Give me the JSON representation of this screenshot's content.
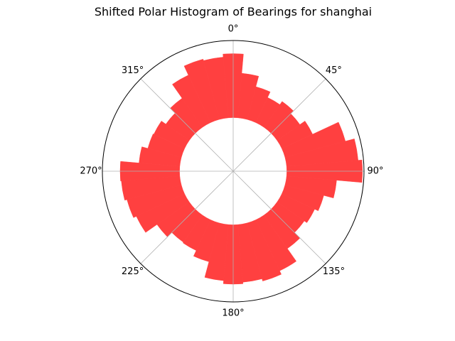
{
  "chart_data": {
    "type": "bar",
    "projection": "polar",
    "title": "Shifted Polar Histogram of Bearings for shanghai",
    "theta_zero": "N",
    "theta_direction": "clockwise",
    "bar_color": "#ff4040",
    "grid": true,
    "angle_ticks": [
      {
        "angle": 0,
        "label": "0°"
      },
      {
        "angle": 45,
        "label": "45°"
      },
      {
        "angle": 90,
        "label": "90°"
      },
      {
        "angle": 135,
        "label": "135°"
      },
      {
        "angle": 180,
        "label": "180°"
      },
      {
        "angle": 225,
        "label": "225°"
      },
      {
        "angle": 270,
        "label": "270°"
      },
      {
        "angle": 315,
        "label": "315°"
      }
    ],
    "bin_width_deg": 10,
    "bin_offset_deg": -5,
    "bins": [
      0,
      10,
      20,
      30,
      40,
      50,
      60,
      70,
      80,
      90,
      100,
      110,
      120,
      130,
      140,
      150,
      160,
      170,
      180,
      190,
      200,
      210,
      220,
      230,
      240,
      250,
      260,
      270,
      280,
      290,
      300,
      310,
      320,
      330,
      340,
      350
    ],
    "values": [
      0.83,
      0.58,
      0.44,
      0.36,
      0.41,
      0.36,
      0.44,
      0.81,
      0.93,
      0.98,
      0.65,
      0.52,
      0.47,
      0.43,
      0.53,
      0.73,
      0.78,
      0.75,
      0.77,
      0.73,
      0.52,
      0.44,
      0.43,
      0.51,
      0.69,
      0.73,
      0.76,
      0.77,
      0.53,
      0.45,
      0.44,
      0.37,
      0.46,
      0.68,
      0.81,
      0.79
    ],
    "inner_radius_fraction": 0.41
  }
}
